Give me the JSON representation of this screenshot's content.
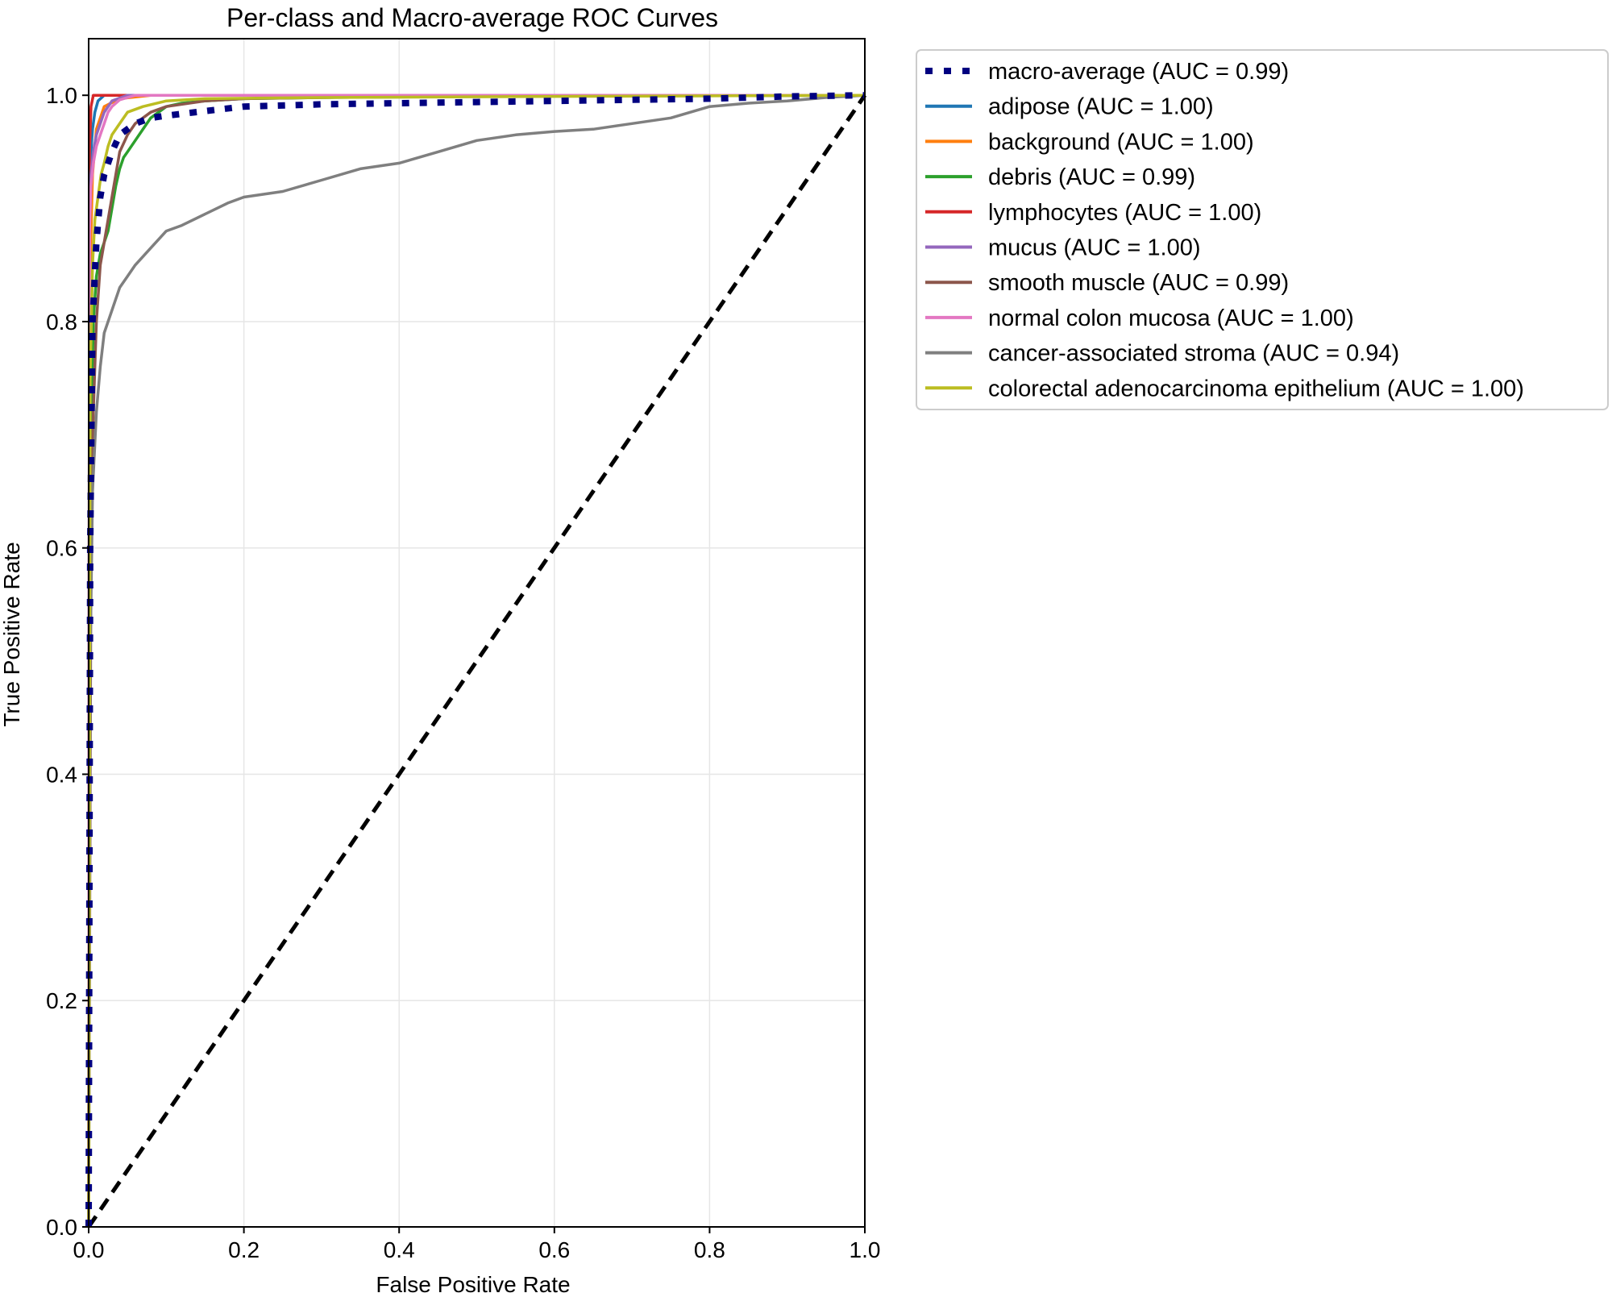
{
  "chart_data": {
    "type": "line",
    "title": "Per-class and Macro-average ROC Curves",
    "xlabel": "False Positive Rate",
    "ylabel": "True Positive Rate",
    "xlim": [
      0.0,
      1.0
    ],
    "ylim": [
      0.0,
      1.05
    ],
    "grid": true,
    "legend_position": "outside-right",
    "xticks": [
      0.0,
      0.2,
      0.4,
      0.6,
      0.8,
      1.0
    ],
    "xtick_labels": [
      "0.0",
      "0.2",
      "0.4",
      "0.6",
      "0.8",
      "1.0"
    ],
    "yticks": [
      0.0,
      0.2,
      0.4,
      0.6,
      0.8,
      1.0
    ],
    "ytick_labels": [
      "0.0",
      "0.2",
      "0.4",
      "0.6",
      "0.8",
      "1.0"
    ],
    "series": [
      {
        "name": "macro-average",
        "label": "macro-average (AUC = 0.99)",
        "auc": 0.99,
        "color": "#000080",
        "style": "dotted",
        "x": [
          0.0,
          0.002,
          0.005,
          0.01,
          0.015,
          0.02,
          0.03,
          0.04,
          0.06,
          0.08,
          0.1,
          0.15,
          0.2,
          0.3,
          0.4,
          0.5,
          0.6,
          0.7,
          0.8,
          0.9,
          1.0
        ],
        "y": [
          0.0,
          0.6,
          0.8,
          0.87,
          0.91,
          0.93,
          0.95,
          0.965,
          0.975,
          0.98,
          0.982,
          0.986,
          0.99,
          0.992,
          0.993,
          0.994,
          0.995,
          0.996,
          0.997,
          0.999,
          1.0
        ]
      },
      {
        "name": "adipose",
        "label": "adipose (AUC = 1.00)",
        "auc": 1.0,
        "color": "#1f77b4",
        "style": "solid",
        "x": [
          0.0,
          0.001,
          0.003,
          0.005,
          0.008,
          0.012,
          0.02,
          0.05,
          1.0
        ],
        "y": [
          0.0,
          0.9,
          0.95,
          0.97,
          0.985,
          0.995,
          1.0,
          1.0,
          1.0
        ]
      },
      {
        "name": "background",
        "label": "background (AUC = 1.00)",
        "auc": 1.0,
        "color": "#ff7f0e",
        "style": "solid",
        "x": [
          0.0,
          0.002,
          0.005,
          0.01,
          0.02,
          0.04,
          0.08,
          1.0
        ],
        "y": [
          0.0,
          0.85,
          0.93,
          0.97,
          0.99,
          0.997,
          1.0,
          1.0
        ]
      },
      {
        "name": "debris",
        "label": "debris (AUC = 0.99)",
        "auc": 0.99,
        "color": "#2ca02c",
        "style": "solid",
        "x": [
          0.0,
          0.003,
          0.006,
          0.01,
          0.015,
          0.02,
          0.025,
          0.03,
          0.035,
          0.04,
          0.045,
          0.05,
          0.06,
          0.07,
          0.08,
          0.1,
          0.12,
          0.15,
          0.2,
          0.3,
          0.5,
          1.0
        ],
        "y": [
          0.0,
          0.7,
          0.8,
          0.84,
          0.86,
          0.87,
          0.88,
          0.9,
          0.92,
          0.935,
          0.945,
          0.95,
          0.96,
          0.97,
          0.98,
          0.99,
          0.993,
          0.995,
          0.997,
          0.998,
          0.999,
          1.0
        ]
      },
      {
        "name": "lymphocytes",
        "label": "lymphocytes (AUC = 1.00)",
        "auc": 1.0,
        "color": "#d62728",
        "style": "solid",
        "x": [
          0.0,
          0.001,
          0.003,
          0.006,
          1.0
        ],
        "y": [
          0.0,
          0.95,
          0.99,
          1.0,
          1.0
        ]
      },
      {
        "name": "mucus",
        "label": "mucus (AUC = 1.00)",
        "auc": 1.0,
        "color": "#9467bd",
        "style": "solid",
        "x": [
          0.0,
          0.001,
          0.003,
          0.006,
          0.01,
          0.015,
          0.02,
          0.03,
          0.05,
          1.0
        ],
        "y": [
          0.0,
          0.88,
          0.93,
          0.95,
          0.965,
          0.975,
          0.985,
          0.995,
          1.0,
          1.0
        ]
      },
      {
        "name": "smooth muscle",
        "label": "smooth muscle (AUC = 0.99)",
        "auc": 0.99,
        "color": "#8c564b",
        "style": "solid",
        "x": [
          0.0,
          0.003,
          0.006,
          0.01,
          0.015,
          0.02,
          0.025,
          0.03,
          0.035,
          0.04,
          0.05,
          0.06,
          0.08,
          0.1,
          0.15,
          0.2,
          0.4,
          1.0
        ],
        "y": [
          0.0,
          0.6,
          0.72,
          0.8,
          0.85,
          0.87,
          0.89,
          0.91,
          0.93,
          0.95,
          0.965,
          0.975,
          0.985,
          0.99,
          0.995,
          0.997,
          0.999,
          1.0
        ]
      },
      {
        "name": "normal colon mucosa",
        "label": "normal colon mucosa (AUC = 1.00)",
        "auc": 1.0,
        "color": "#e377c2",
        "style": "solid",
        "x": [
          0.0,
          0.001,
          0.003,
          0.006,
          0.01,
          0.015,
          0.02,
          0.025,
          0.03,
          0.04,
          0.06,
          1.0
        ],
        "y": [
          0.0,
          0.88,
          0.92,
          0.94,
          0.955,
          0.965,
          0.975,
          0.985,
          0.99,
          0.996,
          1.0,
          1.0
        ]
      },
      {
        "name": "cancer-associated stroma",
        "label": "cancer-associated stroma (AUC = 0.94)",
        "auc": 0.94,
        "color": "#7f7f7f",
        "style": "solid",
        "x": [
          0.0,
          0.002,
          0.005,
          0.01,
          0.015,
          0.02,
          0.03,
          0.04,
          0.05,
          0.06,
          0.08,
          0.1,
          0.12,
          0.15,
          0.18,
          0.2,
          0.25,
          0.3,
          0.35,
          0.4,
          0.45,
          0.5,
          0.55,
          0.6,
          0.65,
          0.7,
          0.75,
          0.8,
          0.85,
          0.9,
          0.95,
          1.0
        ],
        "y": [
          0.0,
          0.5,
          0.65,
          0.72,
          0.76,
          0.79,
          0.81,
          0.83,
          0.84,
          0.85,
          0.865,
          0.88,
          0.885,
          0.895,
          0.905,
          0.91,
          0.915,
          0.925,
          0.935,
          0.94,
          0.95,
          0.96,
          0.965,
          0.968,
          0.97,
          0.975,
          0.98,
          0.99,
          0.993,
          0.995,
          0.998,
          1.0
        ]
      },
      {
        "name": "colorectal adenocarcinoma epithelium",
        "label": "colorectal adenocarcinoma epithelium (AUC = 1.00)",
        "auc": 1.0,
        "color": "#bcbd22",
        "style": "solid",
        "x": [
          0.0,
          0.002,
          0.005,
          0.008,
          0.012,
          0.016,
          0.02,
          0.025,
          0.03,
          0.04,
          0.05,
          0.07,
          0.1,
          0.15,
          0.3,
          0.6,
          1.0
        ],
        "y": [
          0.0,
          0.75,
          0.85,
          0.89,
          0.91,
          0.93,
          0.94,
          0.955,
          0.965,
          0.975,
          0.985,
          0.99,
          0.995,
          0.997,
          0.998,
          0.999,
          1.0
        ]
      },
      {
        "name": "chance",
        "label": "",
        "color": "#000000",
        "style": "dashed",
        "in_legend": false,
        "x": [
          0.0,
          1.0
        ],
        "y": [
          0.0,
          1.0
        ]
      }
    ]
  }
}
